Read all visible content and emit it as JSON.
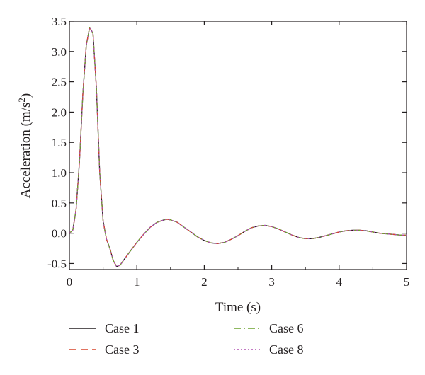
{
  "chart_data": {
    "type": "line",
    "xlabel": "Time (s)",
    "ylabel_main": "Acceleration (m/s",
    "ylabel_sup": "2",
    "ylabel_close": ")",
    "xlim": [
      0,
      5
    ],
    "ylim": [
      -0.6,
      3.5
    ],
    "xticks": [
      0,
      1,
      2,
      3,
      4,
      5
    ],
    "xtick_labels": [
      "0",
      "1",
      "2",
      "3",
      "4",
      "5"
    ],
    "yticks": [
      -0.5,
      0.0,
      0.5,
      1.0,
      1.5,
      2.0,
      2.5,
      3.0,
      3.5
    ],
    "ytick_labels": [
      "-0.5",
      "0.0",
      "0.5",
      "1.0",
      "1.5",
      "2.0",
      "2.5",
      "3.0",
      "3.5"
    ],
    "grid": false,
    "legend_position": "bottom",
    "x": [
      0.0,
      0.05,
      0.1,
      0.15,
      0.2,
      0.25,
      0.3,
      0.35,
      0.4,
      0.45,
      0.5,
      0.55,
      0.6,
      0.65,
      0.7,
      0.75,
      0.8,
      0.9,
      1.0,
      1.1,
      1.2,
      1.3,
      1.4,
      1.45,
      1.5,
      1.6,
      1.7,
      1.8,
      1.9,
      2.0,
      2.1,
      2.2,
      2.3,
      2.4,
      2.5,
      2.6,
      2.7,
      2.8,
      2.9,
      3.0,
      3.1,
      3.2,
      3.3,
      3.4,
      3.5,
      3.6,
      3.7,
      3.8,
      3.9,
      4.0,
      4.1,
      4.2,
      4.3,
      4.4,
      4.5,
      4.6,
      4.7,
      4.8,
      4.9,
      5.0
    ],
    "series": [
      {
        "name": "Case 1",
        "color": "#231f20",
        "dash": "solid",
        "values": [
          0.0,
          0.05,
          0.4,
          1.2,
          2.3,
          3.1,
          3.4,
          3.3,
          2.4,
          1.0,
          0.2,
          -0.1,
          -0.25,
          -0.45,
          -0.55,
          -0.53,
          -0.45,
          -0.3,
          -0.15,
          -0.02,
          0.1,
          0.18,
          0.22,
          0.23,
          0.22,
          0.18,
          0.1,
          0.02,
          -0.06,
          -0.12,
          -0.16,
          -0.17,
          -0.15,
          -0.1,
          -0.04,
          0.03,
          0.09,
          0.12,
          0.13,
          0.11,
          0.07,
          0.02,
          -0.03,
          -0.07,
          -0.09,
          -0.09,
          -0.07,
          -0.04,
          -0.01,
          0.02,
          0.04,
          0.05,
          0.05,
          0.04,
          0.02,
          0.0,
          -0.01,
          -0.02,
          -0.03,
          -0.03
        ]
      },
      {
        "name": "Case 3",
        "color": "#d7452c",
        "dash": "10,6",
        "values": [
          0.0,
          0.05,
          0.4,
          1.2,
          2.3,
          3.1,
          3.4,
          3.3,
          2.4,
          1.0,
          0.2,
          -0.1,
          -0.25,
          -0.45,
          -0.55,
          -0.53,
          -0.45,
          -0.3,
          -0.15,
          -0.02,
          0.1,
          0.18,
          0.22,
          0.23,
          0.22,
          0.18,
          0.1,
          0.02,
          -0.06,
          -0.12,
          -0.16,
          -0.17,
          -0.15,
          -0.1,
          -0.04,
          0.03,
          0.09,
          0.12,
          0.13,
          0.11,
          0.07,
          0.02,
          -0.03,
          -0.07,
          -0.09,
          -0.09,
          -0.07,
          -0.04,
          -0.01,
          0.02,
          0.04,
          0.05,
          0.05,
          0.04,
          0.02,
          0.0,
          -0.01,
          -0.02,
          -0.03,
          -0.03
        ]
      },
      {
        "name": "Case 6",
        "color": "#6aa22d",
        "dash": "10,4,2,4",
        "values": [
          0.0,
          0.05,
          0.4,
          1.2,
          2.3,
          3.1,
          3.4,
          3.3,
          2.4,
          1.0,
          0.2,
          -0.1,
          -0.25,
          -0.45,
          -0.55,
          -0.53,
          -0.45,
          -0.3,
          -0.15,
          -0.02,
          0.1,
          0.18,
          0.22,
          0.23,
          0.22,
          0.18,
          0.1,
          0.02,
          -0.06,
          -0.12,
          -0.16,
          -0.17,
          -0.15,
          -0.1,
          -0.04,
          0.03,
          0.09,
          0.12,
          0.13,
          0.11,
          0.07,
          0.02,
          -0.03,
          -0.07,
          -0.09,
          -0.09,
          -0.07,
          -0.04,
          -0.01,
          0.02,
          0.04,
          0.05,
          0.05,
          0.04,
          0.02,
          0.0,
          -0.01,
          -0.02,
          -0.03,
          -0.03
        ]
      },
      {
        "name": "Case 8",
        "color": "#b04fb0",
        "dash": "2,3",
        "values": [
          0.0,
          0.05,
          0.4,
          1.2,
          2.3,
          3.1,
          3.4,
          3.3,
          2.4,
          1.0,
          0.2,
          -0.1,
          -0.25,
          -0.45,
          -0.55,
          -0.53,
          -0.45,
          -0.3,
          -0.15,
          -0.02,
          0.1,
          0.18,
          0.22,
          0.23,
          0.22,
          0.18,
          0.1,
          0.02,
          -0.06,
          -0.12,
          -0.16,
          -0.17,
          -0.15,
          -0.1,
          -0.04,
          0.03,
          0.09,
          0.12,
          0.13,
          0.11,
          0.07,
          0.02,
          -0.03,
          -0.07,
          -0.09,
          -0.09,
          -0.07,
          -0.04,
          -0.01,
          0.02,
          0.04,
          0.05,
          0.05,
          0.04,
          0.02,
          0.0,
          -0.01,
          -0.02,
          -0.03,
          -0.03
        ]
      }
    ]
  }
}
